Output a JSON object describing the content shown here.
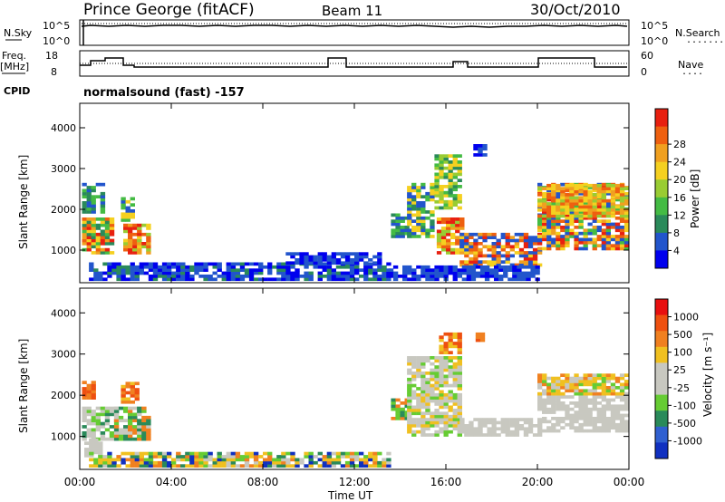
{
  "header": {
    "station": "Prince George (fitACF)",
    "beam": "Beam 11",
    "date": "30/Oct/2010"
  },
  "noise_panel": {
    "left_label": "N.Sky",
    "left_ticks": [
      "10^5",
      "10^0"
    ],
    "right_ticks": [
      "10^5",
      "10^0"
    ],
    "right_label": "N.Search",
    "right_legend": "........"
  },
  "freq_panel": {
    "left_label_1": "Freq.",
    "left_label_2": "[MHz]",
    "left_ticks": [
      "18",
      "8"
    ],
    "right_ticks": [
      "60",
      "0"
    ],
    "right_label": "Nave",
    "right_legend": "....",
    "cpid_label": "CPID",
    "cpid_value": "normalsound (fast) -157"
  },
  "x_axis": {
    "ticks": [
      "00:00",
      "04:00",
      "08:00",
      "12:00",
      "16:00",
      "20:00",
      "00:00"
    ],
    "label": "Time UT"
  },
  "chart_data": [
    {
      "type": "heatmap",
      "name": "power",
      "ylabel": "Slant Range [km]",
      "y_ticks": [
        1000,
        2000,
        3000,
        4000
      ],
      "ylim": [
        200,
        4600
      ],
      "xlim": [
        "00:00",
        "24:00"
      ],
      "colorbar": {
        "label": "Power [dB]",
        "ticks": [
          4,
          8,
          12,
          16,
          20,
          24,
          28
        ],
        "colors": [
          "#0000ee",
          "#2255cc",
          "#2a8a5a",
          "#44bb44",
          "#99cc33",
          "#f5d020",
          "#f0a020",
          "#ee6010",
          "#e82010"
        ]
      }
    },
    {
      "type": "heatmap",
      "name": "velocity",
      "ylabel": "Slant Range [km]",
      "y_ticks": [
        1000,
        2000,
        3000,
        4000
      ],
      "ylim": [
        200,
        4600
      ],
      "xlim": [
        "00:00",
        "24:00"
      ],
      "colorbar": {
        "label": "Velocity [m s⁻¹]",
        "ticks": [
          "1000",
          "500",
          "100",
          "25",
          "-25",
          "-100",
          "-500",
          "-1000"
        ],
        "colors": [
          "#1030c0",
          "#3060d0",
          "#2a8a5a",
          "#66cc33",
          "#c8c8c0",
          "#c8c8c0",
          "#f0c020",
          "#f08020",
          "#ee5010",
          "#e81010"
        ]
      }
    }
  ]
}
